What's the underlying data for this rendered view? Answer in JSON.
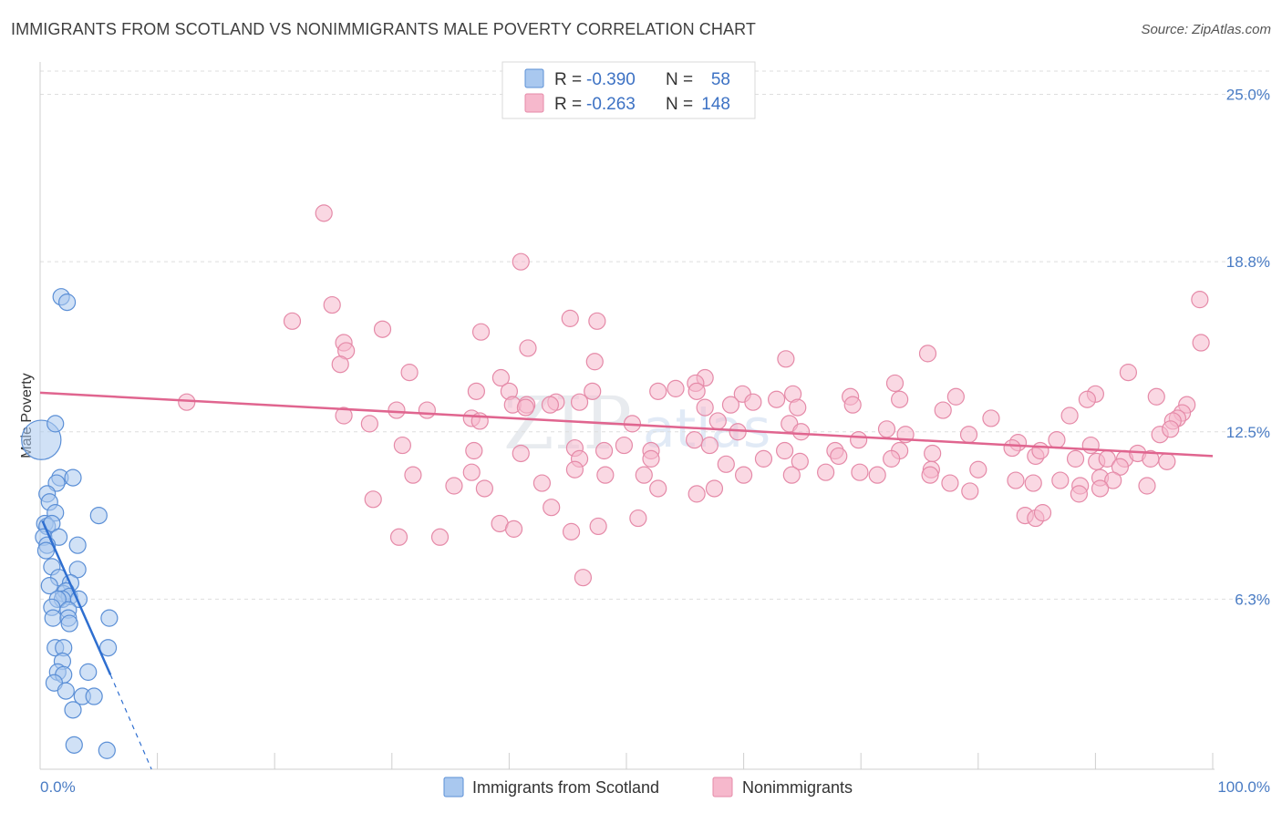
{
  "header": {
    "title": "IMMIGRANTS FROM SCOTLAND VS NONIMMIGRANTS MALE POVERTY CORRELATION CHART",
    "source": "Source: ZipAtlas.com"
  },
  "watermark": {
    "zip": "ZIP",
    "atlas": "atlas"
  },
  "colors": {
    "blue_fill": "#a9c8ef",
    "blue_stroke": "#5b8fd6",
    "blue_line": "#2f6fd0",
    "pink_fill": "#f6b8cc",
    "pink_stroke": "#e58aa8",
    "pink_line": "#e0658f",
    "axis_text": "#4a7cc4"
  },
  "legend": {
    "rows": [
      {
        "r_label": "R =",
        "r_value": "-0.390",
        "n_label": "N =",
        "n_value": "58"
      },
      {
        "r_label": "R =",
        "r_value": "-0.263",
        "n_label": "N =",
        "n_value": "148"
      }
    ]
  },
  "chart_data": {
    "type": "scatter",
    "title": "IMMIGRANTS FROM SCOTLAND VS NONIMMIGRANTS MALE POVERTY CORRELATION CHART",
    "xlabel": "",
    "ylabel": "Male Poverty",
    "xlim": [
      0,
      100
    ],
    "ylim": [
      0,
      26.2
    ],
    "x_tick_labels": [
      "0.0%",
      "100.0%"
    ],
    "y_ticks": [
      6.3,
      12.5,
      18.8,
      25.0
    ],
    "y_tick_labels": [
      "6.3%",
      "12.5%",
      "18.8%",
      "25.0%"
    ],
    "legend_position": "bottom-center",
    "series": [
      {
        "name": "Immigrants from Scotland",
        "r": -0.39,
        "n": 58,
        "trend": {
          "x0": 0.2,
          "y0": 9.2,
          "x1": 6.0,
          "y1": 3.5,
          "dash_to_x": 9.5,
          "dash_to_y": 0.0
        },
        "points": [
          [
            0.1,
            12.2,
            2.4
          ],
          [
            1.8,
            17.5,
            1
          ],
          [
            2.3,
            17.3,
            1
          ],
          [
            1.3,
            12.8,
            1
          ],
          [
            1.7,
            10.8,
            1
          ],
          [
            1.4,
            10.6,
            1
          ],
          [
            2.8,
            10.8,
            1
          ],
          [
            0.6,
            10.2,
            1
          ],
          [
            0.8,
            9.9,
            1
          ],
          [
            1.3,
            9.5,
            1
          ],
          [
            0.4,
            9.1,
            1
          ],
          [
            0.6,
            9.0,
            1
          ],
          [
            1.0,
            9.1,
            1
          ],
          [
            5.0,
            9.4,
            1
          ],
          [
            0.3,
            8.6,
            1
          ],
          [
            1.6,
            8.6,
            1
          ],
          [
            0.6,
            8.3,
            1
          ],
          [
            0.5,
            8.1,
            1
          ],
          [
            3.2,
            8.3,
            1
          ],
          [
            1.0,
            7.5,
            1
          ],
          [
            3.2,
            7.4,
            1
          ],
          [
            1.6,
            7.1,
            1
          ],
          [
            2.6,
            6.9,
            1
          ],
          [
            0.8,
            6.8,
            1
          ],
          [
            2.0,
            6.5,
            1
          ],
          [
            2.2,
            6.6,
            1
          ],
          [
            2.5,
            6.4,
            1
          ],
          [
            1.9,
            6.3,
            1
          ],
          [
            1.5,
            6.3,
            1
          ],
          [
            3.3,
            6.3,
            1
          ],
          [
            1.0,
            6.0,
            1
          ],
          [
            2.4,
            5.9,
            1
          ],
          [
            1.1,
            5.6,
            1
          ],
          [
            2.4,
            5.6,
            1
          ],
          [
            2.5,
            5.4,
            1
          ],
          [
            5.9,
            5.6,
            1
          ],
          [
            1.3,
            4.5,
            1
          ],
          [
            2.0,
            4.5,
            1
          ],
          [
            5.8,
            4.5,
            1
          ],
          [
            1.9,
            4.0,
            1
          ],
          [
            1.5,
            3.6,
            1
          ],
          [
            2.0,
            3.5,
            1
          ],
          [
            4.1,
            3.6,
            1
          ],
          [
            1.2,
            3.2,
            1
          ],
          [
            2.2,
            2.9,
            1
          ],
          [
            3.6,
            2.7,
            1
          ],
          [
            4.6,
            2.7,
            1
          ],
          [
            2.8,
            2.2,
            1
          ],
          [
            2.9,
            0.9,
            1
          ],
          [
            5.7,
            0.7,
            1
          ]
        ]
      },
      {
        "name": "Nonimmigrants",
        "r": -0.263,
        "n": 148,
        "trend": {
          "x0": 0.0,
          "y0": 13.95,
          "x1": 100.0,
          "y1": 11.6
        },
        "points": [
          [
            24.2,
            20.6
          ],
          [
            41.0,
            18.8
          ],
          [
            24.9,
            17.2
          ],
          [
            21.5,
            16.6
          ],
          [
            29.2,
            16.3
          ],
          [
            45.2,
            16.7
          ],
          [
            47.5,
            16.6
          ],
          [
            37.6,
            16.2
          ],
          [
            25.9,
            15.8
          ],
          [
            26.1,
            15.5
          ],
          [
            41.6,
            15.6
          ],
          [
            47.3,
            15.1
          ],
          [
            63.6,
            15.2
          ],
          [
            75.7,
            15.4
          ],
          [
            25.6,
            15.0
          ],
          [
            31.5,
            14.7
          ],
          [
            39.3,
            14.5
          ],
          [
            56.7,
            14.5
          ],
          [
            55.9,
            14.3
          ],
          [
            72.9,
            14.3
          ],
          [
            92.8,
            14.7
          ],
          [
            98.9,
            17.4
          ],
          [
            99.0,
            15.8
          ],
          [
            37.2,
            14.0
          ],
          [
            40.0,
            14.0
          ],
          [
            47.1,
            14.0
          ],
          [
            52.7,
            14.0
          ],
          [
            54.2,
            14.1
          ],
          [
            56.0,
            14.0
          ],
          [
            59.9,
            13.9
          ],
          [
            64.2,
            13.9
          ],
          [
            69.1,
            13.8
          ],
          [
            78.1,
            13.8
          ],
          [
            90.0,
            13.9
          ],
          [
            12.5,
            13.6
          ],
          [
            33.0,
            13.3
          ],
          [
            40.3,
            13.5
          ],
          [
            41.5,
            13.5
          ],
          [
            44.0,
            13.6
          ],
          [
            46.0,
            13.6
          ],
          [
            60.8,
            13.6
          ],
          [
            62.8,
            13.7
          ],
          [
            73.3,
            13.7
          ],
          [
            36.8,
            13.0
          ],
          [
            41.4,
            13.4
          ],
          [
            43.5,
            13.5
          ],
          [
            56.7,
            13.4
          ],
          [
            58.9,
            13.5
          ],
          [
            64.6,
            13.4
          ],
          [
            69.3,
            13.5
          ],
          [
            77.0,
            13.3
          ],
          [
            87.8,
            13.1
          ],
          [
            89.3,
            13.7
          ],
          [
            95.2,
            13.8
          ],
          [
            30.4,
            13.3
          ],
          [
            25.9,
            13.1
          ],
          [
            28.1,
            12.8
          ],
          [
            37.5,
            12.9
          ],
          [
            50.5,
            12.8
          ],
          [
            57.8,
            12.9
          ],
          [
            63.9,
            12.8
          ],
          [
            72.2,
            12.6
          ],
          [
            81.1,
            13.0
          ],
          [
            97.8,
            13.5
          ],
          [
            97.4,
            13.2
          ],
          [
            97.0,
            13.0
          ],
          [
            96.6,
            12.9
          ],
          [
            95.5,
            12.4
          ],
          [
            96.4,
            12.6
          ],
          [
            30.9,
            12.0
          ],
          [
            49.8,
            12.0
          ],
          [
            55.8,
            12.2
          ],
          [
            59.5,
            12.5
          ],
          [
            64.9,
            12.5
          ],
          [
            69.8,
            12.2
          ],
          [
            73.8,
            12.4
          ],
          [
            79.2,
            12.4
          ],
          [
            83.4,
            12.1
          ],
          [
            86.7,
            12.2
          ],
          [
            89.6,
            12.0
          ],
          [
            45.6,
            11.9
          ],
          [
            48.1,
            11.8
          ],
          [
            52.1,
            11.8
          ],
          [
            57.1,
            12.0
          ],
          [
            63.5,
            11.8
          ],
          [
            67.8,
            11.8
          ],
          [
            73.3,
            11.8
          ],
          [
            76.1,
            11.7
          ],
          [
            82.9,
            11.9
          ],
          [
            84.9,
            11.6
          ],
          [
            88.3,
            11.5
          ],
          [
            90.1,
            11.4
          ],
          [
            92.5,
            11.5
          ],
          [
            93.6,
            11.7
          ],
          [
            94.7,
            11.5
          ],
          [
            96.1,
            11.4
          ],
          [
            37.0,
            11.8
          ],
          [
            41.0,
            11.7
          ],
          [
            46.0,
            11.5
          ],
          [
            52.1,
            11.5
          ],
          [
            58.5,
            11.3
          ],
          [
            61.7,
            11.5
          ],
          [
            64.8,
            11.4
          ],
          [
            68.1,
            11.6
          ],
          [
            72.6,
            11.5
          ],
          [
            76.0,
            11.1
          ],
          [
            80.0,
            11.1
          ],
          [
            85.3,
            11.8
          ],
          [
            91.0,
            11.5
          ],
          [
            92.1,
            11.2
          ],
          [
            31.8,
            10.9
          ],
          [
            36.8,
            11.0
          ],
          [
            45.6,
            11.1
          ],
          [
            48.2,
            10.9
          ],
          [
            51.5,
            10.9
          ],
          [
            60.0,
            10.9
          ],
          [
            64.1,
            10.9
          ],
          [
            67.0,
            11.0
          ],
          [
            69.9,
            11.0
          ],
          [
            71.4,
            10.9
          ],
          [
            75.9,
            10.9
          ],
          [
            77.6,
            10.6
          ],
          [
            79.3,
            10.3
          ],
          [
            83.2,
            10.7
          ],
          [
            84.7,
            10.6
          ],
          [
            87.0,
            10.7
          ],
          [
            88.7,
            10.5
          ],
          [
            90.4,
            10.8
          ],
          [
            91.5,
            10.7
          ],
          [
            94.4,
            10.5
          ],
          [
            35.3,
            10.5
          ],
          [
            37.9,
            10.4
          ],
          [
            42.8,
            10.6
          ],
          [
            52.7,
            10.4
          ],
          [
            56.0,
            10.2
          ],
          [
            57.5,
            10.4
          ],
          [
            28.4,
            10.0
          ],
          [
            43.6,
            9.7
          ],
          [
            84.0,
            9.4
          ],
          [
            84.9,
            9.3
          ],
          [
            85.5,
            9.5
          ],
          [
            88.6,
            10.2
          ],
          [
            90.4,
            10.4
          ],
          [
            45.3,
            8.8
          ],
          [
            51.0,
            9.3
          ],
          [
            39.2,
            9.1
          ],
          [
            40.4,
            8.9
          ],
          [
            47.6,
            9.0
          ],
          [
            30.6,
            8.6
          ],
          [
            34.1,
            8.6
          ],
          [
            46.3,
            7.1
          ]
        ]
      }
    ]
  },
  "bottom_legend": {
    "items": [
      {
        "label": "Immigrants from Scotland"
      },
      {
        "label": "Nonimmigrants"
      }
    ]
  }
}
